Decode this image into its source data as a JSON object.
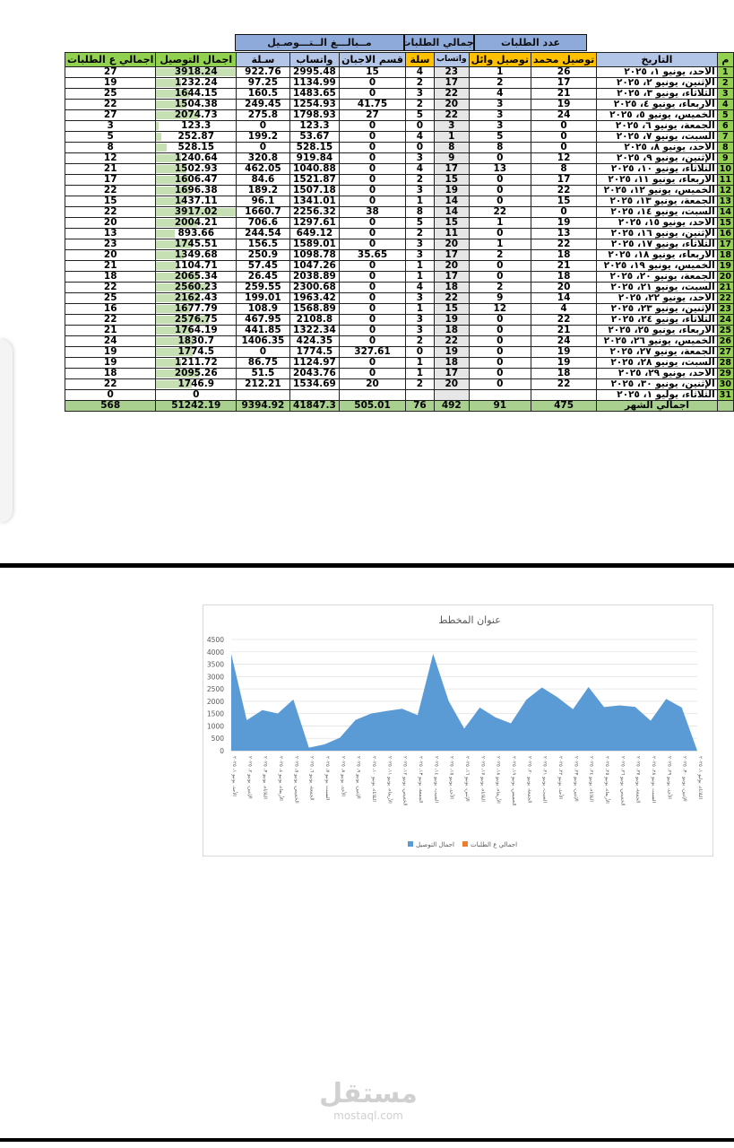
{
  "headers": {
    "group_requests": "عدد الطلبات",
    "group_requests_total": "اجمالي الطلبات",
    "group_amounts": "مــبالـــغ الــتـــوصـيل",
    "col_m": "م",
    "col_date": "التاريخ",
    "col_tawsil_mohamed": "توصيل محمد",
    "col_tawsil_wael": "توصيل وائل",
    "col_whatsapp_count": "واتساب",
    "col_salla_count": "سلة",
    "col_algeban": "قسم الاجبان",
    "col_whatsapp_amt": "واتساب",
    "col_salla_amt": "سـلة",
    "col_total_delivery": "اجمال التوصيل",
    "col_total_requests": "اجمالي ع الطلبات"
  },
  "rows": [
    {
      "m": "1",
      "date": "الأحد، يونيو ١، ٢٠٢٥",
      "mohamed": "26",
      "wael": "1",
      "whatsapp": "23",
      "salla": "4",
      "algeban": "15",
      "wa_amt": "2995.48",
      "salla_amt": "922.76",
      "total_delivery": "3918.24",
      "total_requests": "27"
    },
    {
      "m": "2",
      "date": "الإثنين، يونيو ٢، ٢٠٢٥",
      "mohamed": "17",
      "wael": "2",
      "whatsapp": "17",
      "salla": "2",
      "algeban": "0",
      "wa_amt": "1134.99",
      "salla_amt": "97.25",
      "total_delivery": "1232.24",
      "total_requests": "19"
    },
    {
      "m": "3",
      "date": "الثلاثاء، يونيو ٣، ٢٠٢٥",
      "mohamed": "21",
      "wael": "4",
      "whatsapp": "22",
      "salla": "3",
      "algeban": "0",
      "wa_amt": "1483.65",
      "salla_amt": "160.5",
      "total_delivery": "1644.15",
      "total_requests": "25"
    },
    {
      "m": "4",
      "date": "الأربعاء، يونيو ٤، ٢٠٢٥",
      "mohamed": "19",
      "wael": "3",
      "whatsapp": "20",
      "salla": "2",
      "algeban": "41.75",
      "wa_amt": "1254.93",
      "salla_amt": "249.45",
      "total_delivery": "1504.38",
      "total_requests": "22"
    },
    {
      "m": "5",
      "date": "الخميس، يونيو ٥، ٢٠٢٥",
      "mohamed": "24",
      "wael": "3",
      "whatsapp": "22",
      "salla": "5",
      "algeban": "27",
      "wa_amt": "1798.93",
      "salla_amt": "275.8",
      "total_delivery": "2074.73",
      "total_requests": "27"
    },
    {
      "m": "6",
      "date": "الجمعة، يونيو ٦، ٢٠٢٥",
      "mohamed": "0",
      "wael": "3",
      "whatsapp": "3",
      "salla": "0",
      "algeban": "0",
      "wa_amt": "123.3",
      "salla_amt": "0",
      "total_delivery": "123.3",
      "total_requests": "3"
    },
    {
      "m": "7",
      "date": "السبت، يونيو ٧، ٢٠٢٥",
      "mohamed": "0",
      "wael": "5",
      "whatsapp": "1",
      "salla": "4",
      "algeban": "0",
      "wa_amt": "53.67",
      "salla_amt": "199.2",
      "total_delivery": "252.87",
      "total_requests": "5"
    },
    {
      "m": "8",
      "date": "الأحد، يونيو ٨، ٢٠٢٥",
      "mohamed": "0",
      "wael": "8",
      "whatsapp": "8",
      "salla": "0",
      "algeban": "0",
      "wa_amt": "528.15",
      "salla_amt": "0",
      "total_delivery": "528.15",
      "total_requests": "8"
    },
    {
      "m": "9",
      "date": "الإثنين، يونيو ٩، ٢٠٢٥",
      "mohamed": "12",
      "wael": "0",
      "whatsapp": "9",
      "salla": "3",
      "algeban": "0",
      "wa_amt": "919.84",
      "salla_amt": "320.8",
      "total_delivery": "1240.64",
      "total_requests": "12"
    },
    {
      "m": "10",
      "date": "الثلاثاء، يونيو ١٠، ٢٠٢٥",
      "mohamed": "8",
      "wael": "13",
      "whatsapp": "17",
      "salla": "4",
      "algeban": "0",
      "wa_amt": "1040.88",
      "salla_amt": "462.05",
      "total_delivery": "1502.93",
      "total_requests": "21"
    },
    {
      "m": "11",
      "date": "الأربعاء، يونيو ١١، ٢٠٢٥",
      "mohamed": "17",
      "wael": "0",
      "whatsapp": "15",
      "salla": "2",
      "algeban": "0",
      "wa_amt": "1521.87",
      "salla_amt": "84.6",
      "total_delivery": "1606.47",
      "total_requests": "17"
    },
    {
      "m": "12",
      "date": "الخميس، يونيو ١٢، ٢٠٢٥",
      "mohamed": "22",
      "wael": "0",
      "whatsapp": "19",
      "salla": "3",
      "algeban": "0",
      "wa_amt": "1507.18",
      "salla_amt": "189.2",
      "total_delivery": "1696.38",
      "total_requests": "22"
    },
    {
      "m": "13",
      "date": "الجمعة، يونيو ١٣، ٢٠٢٥",
      "mohamed": "15",
      "wael": "0",
      "whatsapp": "14",
      "salla": "1",
      "algeban": "0",
      "wa_amt": "1341.01",
      "salla_amt": "96.1",
      "total_delivery": "1437.11",
      "total_requests": "15"
    },
    {
      "m": "14",
      "date": "السبت، يونيو ١٤، ٢٠٢٥",
      "mohamed": "0",
      "wael": "22",
      "whatsapp": "14",
      "salla": "8",
      "algeban": "38",
      "wa_amt": "2256.32",
      "salla_amt": "1660.7",
      "total_delivery": "3917.02",
      "total_requests": "22"
    },
    {
      "m": "15",
      "date": "الأحد، يونيو ١٥، ٢٠٢٥",
      "mohamed": "19",
      "wael": "1",
      "whatsapp": "15",
      "salla": "5",
      "algeban": "0",
      "wa_amt": "1297.61",
      "salla_amt": "706.6",
      "total_delivery": "2004.21",
      "total_requests": "20"
    },
    {
      "m": "16",
      "date": "الإثنين، يونيو ١٦، ٢٠٢٥",
      "mohamed": "13",
      "wael": "0",
      "whatsapp": "11",
      "salla": "2",
      "algeban": "0",
      "wa_amt": "649.12",
      "salla_amt": "244.54",
      "total_delivery": "893.66",
      "total_requests": "13"
    },
    {
      "m": "17",
      "date": "الثلاثاء، يونيو ١٧، ٢٠٢٥",
      "mohamed": "22",
      "wael": "1",
      "whatsapp": "20",
      "salla": "3",
      "algeban": "0",
      "wa_amt": "1589.01",
      "salla_amt": "156.5",
      "total_delivery": "1745.51",
      "total_requests": "23"
    },
    {
      "m": "18",
      "date": "الأربعاء، يونيو ١٨، ٢٠٢٥",
      "mohamed": "18",
      "wael": "2",
      "whatsapp": "17",
      "salla": "3",
      "algeban": "35.65",
      "wa_amt": "1098.78",
      "salla_amt": "250.9",
      "total_delivery": "1349.68",
      "total_requests": "20"
    },
    {
      "m": "19",
      "date": "الخميس، يونيو ١٩، ٢٠٢٥",
      "mohamed": "21",
      "wael": "0",
      "whatsapp": "20",
      "salla": "1",
      "algeban": "0",
      "wa_amt": "1047.26",
      "salla_amt": "57.45",
      "total_delivery": "1104.71",
      "total_requests": "21"
    },
    {
      "m": "20",
      "date": "الجمعة، يونيو ٢٠، ٢٠٢٥",
      "mohamed": "18",
      "wael": "0",
      "whatsapp": "17",
      "salla": "1",
      "algeban": "0",
      "wa_amt": "2038.89",
      "salla_amt": "26.45",
      "total_delivery": "2065.34",
      "total_requests": "18"
    },
    {
      "m": "21",
      "date": "السبت، يونيو ٢١، ٢٠٢٥",
      "mohamed": "20",
      "wael": "2",
      "whatsapp": "18",
      "salla": "4",
      "algeban": "0",
      "wa_amt": "2300.68",
      "salla_amt": "259.55",
      "total_delivery": "2560.23",
      "total_requests": "22"
    },
    {
      "m": "22",
      "date": "الأحد، يونيو ٢٢، ٢٠٢٥",
      "mohamed": "14",
      "wael": "9",
      "whatsapp": "22",
      "salla": "3",
      "algeban": "0",
      "wa_amt": "1963.42",
      "salla_amt": "199.01",
      "total_delivery": "2162.43",
      "total_requests": "25"
    },
    {
      "m": "23",
      "date": "الإثنين، يونيو ٢٣، ٢٠٢٥",
      "mohamed": "4",
      "wael": "12",
      "whatsapp": "15",
      "salla": "1",
      "algeban": "0",
      "wa_amt": "1568.89",
      "salla_amt": "108.9",
      "total_delivery": "1677.79",
      "total_requests": "16"
    },
    {
      "m": "24",
      "date": "الثلاثاء، يونيو ٢٤، ٢٠٢٥",
      "mohamed": "22",
      "wael": "0",
      "whatsapp": "19",
      "salla": "3",
      "algeban": "0",
      "wa_amt": "2108.8",
      "salla_amt": "467.95",
      "total_delivery": "2576.75",
      "total_requests": "22"
    },
    {
      "m": "25",
      "date": "الأربعاء، يونيو ٢٥، ٢٠٢٥",
      "mohamed": "21",
      "wael": "0",
      "whatsapp": "18",
      "salla": "3",
      "algeban": "0",
      "wa_amt": "1322.34",
      "salla_amt": "441.85",
      "total_delivery": "1764.19",
      "total_requests": "21"
    },
    {
      "m": "26",
      "date": "الخميس، يونيو ٢٦، ٢٠٢٥",
      "mohamed": "24",
      "wael": "0",
      "whatsapp": "22",
      "salla": "2",
      "algeban": "0",
      "wa_amt": "424.35",
      "salla_amt": "1406.35",
      "total_delivery": "1830.7",
      "total_requests": "24"
    },
    {
      "m": "27",
      "date": "الجمعة، يونيو ٢٧، ٢٠٢٥",
      "mohamed": "19",
      "wael": "0",
      "whatsapp": "19",
      "salla": "0",
      "algeban": "327.61",
      "wa_amt": "1774.5",
      "salla_amt": "0",
      "total_delivery": "1774.5",
      "total_requests": "19"
    },
    {
      "m": "28",
      "date": "السبت، يونيو ٢٨، ٢٠٢٥",
      "mohamed": "19",
      "wael": "0",
      "whatsapp": "18",
      "salla": "1",
      "algeban": "0",
      "wa_amt": "1124.97",
      "salla_amt": "86.75",
      "total_delivery": "1211.72",
      "total_requests": "19"
    },
    {
      "m": "29",
      "date": "الأحد، يونيو ٢٩، ٢٠٢٥",
      "mohamed": "18",
      "wael": "0",
      "whatsapp": "17",
      "salla": "1",
      "algeban": "0",
      "wa_amt": "2043.76",
      "salla_amt": "51.5",
      "total_delivery": "2095.26",
      "total_requests": "18"
    },
    {
      "m": "30",
      "date": "الإثنين، يونيو ٣٠، ٢٠٢٥",
      "mohamed": "22",
      "wael": "0",
      "whatsapp": "20",
      "salla": "2",
      "algeban": "20",
      "wa_amt": "1534.69",
      "salla_amt": "212.21",
      "total_delivery": "1746.9",
      "total_requests": "22"
    },
    {
      "m": "31",
      "date": "الثلاثاء، يوليو ١، ٢٠٢٥",
      "mohamed": "",
      "wael": "",
      "whatsapp": "",
      "salla": "",
      "algeban": "",
      "wa_amt": "",
      "salla_amt": "",
      "total_delivery": "0",
      "total_requests": "0"
    }
  ],
  "totals": {
    "label": "اجمالي الشهر",
    "mohamed": "475",
    "wael": "91",
    "whatsapp": "492",
    "salla": "76",
    "algeban": "505.01",
    "wa_amt": "41847.3",
    "salla_amt": "9394.92",
    "total_delivery": "51242.19",
    "total_requests": "568"
  },
  "colors": {
    "area_fill": "#5b9bd5",
    "legend_orange": "#ed7d31",
    "header_blue": "#8eaadb",
    "header_green": "#92d050",
    "header_yellow": "#ffc000"
  },
  "chart_data": {
    "type": "area",
    "title": "عنوان المخطط",
    "categories": [
      "الأحد، يونيو ١، ٢٠٢٥",
      "الإثنين، يونيو ٢، ٢٠٢٥",
      "الثلاثاء، يونيو ٣، ٢٠٢٥",
      "الأربعاء، يونيو ٤، ٢٠٢٥",
      "الخميس، يونيو ٥، ٢٠٢٥",
      "الجمعة، يونيو ٦، ٢٠٢٥",
      "السبت، يونيو ٧، ٢٠٢٥",
      "الأحد، يونيو ٨، ٢٠٢٥",
      "الإثنين، يونيو ٩، ٢٠٢٥",
      "الثلاثاء، يونيو ١٠، ٢٠٢٥",
      "الأربعاء، يونيو ١١، ٢٠٢٥",
      "الخميس، يونيو ١٢، ٢٠٢٥",
      "الجمعة، يونيو ١٣، ٢٠٢٥",
      "السبت، يونيو ١٤، ٢٠٢٥",
      "الأحد، يونيو ١٥، ٢٠٢٥",
      "الإثنين، يونيو ١٦، ٢٠٢٥",
      "الثلاثاء، يونيو ١٧، ٢٠٢٥",
      "الأربعاء، يونيو ١٨، ٢٠٢٥",
      "الخميس، يونيو ١٩، ٢٠٢٥",
      "الجمعة، يونيو ٢٠، ٢٠٢٥",
      "السبت، يونيو ٢١، ٢٠٢٥",
      "الأحد، يونيو ٢٢، ٢٠٢٥",
      "الإثنين، يونيو ٢٣، ٢٠٢٥",
      "الثلاثاء، يونيو ٢٤، ٢٠٢٥",
      "الأربعاء، يونيو ٢٥، ٢٠٢٥",
      "الخميس، يونيو ٢٦، ٢٠٢٥",
      "الجمعة، يونيو ٢٧، ٢٠٢٥",
      "السبت، يونيو ٢٨، ٢٠٢٥",
      "الأحد، يونيو ٢٩، ٢٠٢٥",
      "الإثنين، يونيو ٣٠، ٢٠٢٥",
      "الثلاثاء، يوليو ١، ٢٠٢٥"
    ],
    "series": [
      {
        "name": "اجمال التوصيل",
        "values": [
          3918.24,
          1232.24,
          1644.15,
          1504.38,
          2074.73,
          123.3,
          252.87,
          528.15,
          1240.64,
          1502.93,
          1606.47,
          1696.38,
          1437.11,
          3917.02,
          2004.21,
          893.66,
          1745.51,
          1349.68,
          1104.71,
          2065.34,
          2560.23,
          2162.43,
          1677.79,
          2576.75,
          1764.19,
          1830.7,
          1774.5,
          1211.72,
          2095.26,
          1746.9,
          0
        ]
      },
      {
        "name": "اجمالي ع الطلبات",
        "values": [
          27,
          19,
          25,
          22,
          27,
          3,
          5,
          8,
          12,
          21,
          17,
          22,
          15,
          22,
          20,
          13,
          23,
          20,
          21,
          18,
          22,
          25,
          16,
          22,
          21,
          24,
          19,
          19,
          18,
          22,
          0
        ]
      }
    ],
    "ylim": [
      0,
      4500
    ],
    "yticks": [
      0,
      500,
      1000,
      1500,
      2000,
      2500,
      3000,
      3500,
      4000,
      4500
    ],
    "grid": true,
    "legend": "bottom"
  },
  "watermark": {
    "brand": "مستقل",
    "url": "mostaql.com"
  }
}
